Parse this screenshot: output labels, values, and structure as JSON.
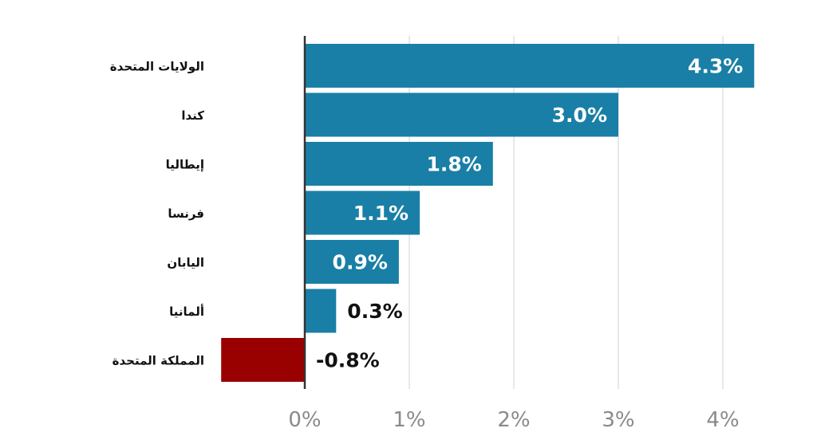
{
  "chart_data": {
    "type": "bar",
    "orientation": "horizontal",
    "categories": [
      "الولايات المتحدة",
      "كندا",
      "إيطاليا",
      "فرنسا",
      "اليابان",
      "ألمانيا",
      "المملكة المتحدة"
    ],
    "values": [
      4.3,
      3.0,
      1.8,
      1.1,
      0.9,
      0.3,
      -0.8
    ],
    "value_labels": [
      "4.3%",
      "3.0%",
      "1.8%",
      "1.1%",
      "0.9%",
      "0.3%",
      "-0.8%"
    ],
    "x_ticks": [
      0,
      1,
      2,
      3,
      4
    ],
    "x_tick_labels": [
      "0%",
      "1%",
      "2%",
      "3%",
      "4%"
    ],
    "xlim": [
      -0.8,
      4.3
    ],
    "grid": "vertical",
    "colors": {
      "positive": "#1a7fa6",
      "negative": "#990000",
      "gridline": "#d9d9d9",
      "zero_line": "#333333"
    }
  }
}
